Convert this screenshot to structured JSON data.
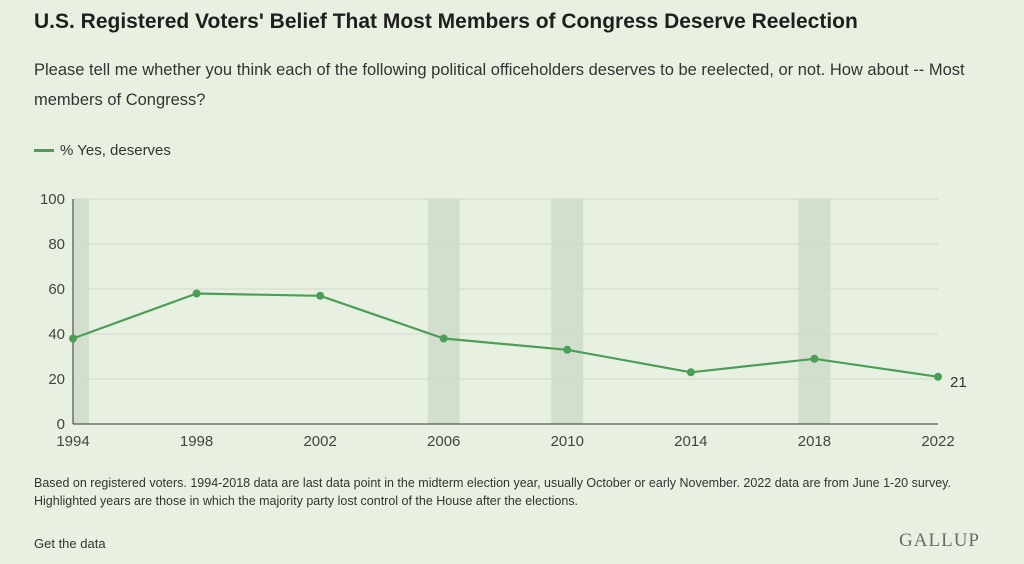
{
  "title": "U.S. Registered Voters' Belief That Most Members of Congress Deserve Reelection",
  "subtitle": "Please tell me whether you think each of the following political officeholders deserves to be reelected, or not. How about -- Most members of Congress?",
  "legend": {
    "label": "% Yes, deserves",
    "color": "#4a9e57"
  },
  "footnote": "Based on registered voters. 1994-2018 data are last data point in the midterm election year, usually October or early November. 2022 data are from June 1-20 survey. Highlighted years are those in which the majority party lost control of the House after the elections.",
  "get_data_link": "Get the data",
  "brand": "GALLUP",
  "colors": {
    "background": "#e8f1e1",
    "line": "#4a9e57",
    "highlight": "#d3dfcd",
    "gridline": "#cfd9c8"
  },
  "chart_data": {
    "type": "line",
    "xlim": [
      1994,
      2022
    ],
    "ylim": [
      0,
      100
    ],
    "x_ticks": [
      1994,
      1998,
      2002,
      2006,
      2010,
      2014,
      2018,
      2022
    ],
    "y_ticks": [
      0,
      20,
      40,
      60,
      80,
      100
    ],
    "grid": true,
    "legend_position": "top-left",
    "series": [
      {
        "name": "% Yes, deserves",
        "x": [
          1994,
          1998,
          2002,
          2006,
          2010,
          2014,
          2018,
          2022
        ],
        "y": [
          38,
          58,
          57,
          38,
          33,
          23,
          29,
          21
        ]
      }
    ],
    "end_label": "21",
    "highlighted_years": [
      1994,
      2006,
      2010,
      2018
    ]
  }
}
